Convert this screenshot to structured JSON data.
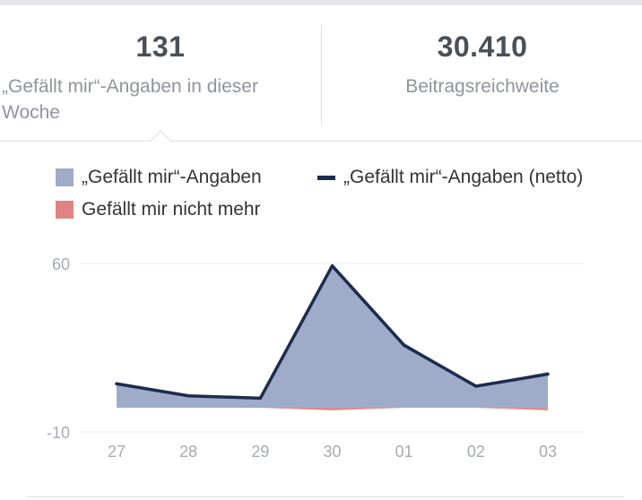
{
  "stats": {
    "likes_value": "131",
    "likes_label": "„Gefällt mir“-Angaben in dieser Woche",
    "reach_value": "30.410",
    "reach_label": "Beitragsreichweite"
  },
  "colors": {
    "likes_area": "#9eabc9",
    "net_line": "#1d2c4c",
    "unlikes_area": "#e08483",
    "grid": "#e9ebee",
    "tick_text": "#a7abb1"
  },
  "chart_data": {
    "type": "area",
    "title": "",
    "xlabel": "",
    "ylabel": "",
    "legend_position": "top",
    "grid": true,
    "ylim": [
      -10,
      60
    ],
    "yticks": [
      60,
      -10
    ],
    "categories": [
      "27",
      "28",
      "29",
      "30",
      "01",
      "02",
      "03"
    ],
    "series": [
      {
        "name": "„Gefällt mir“-Angaben",
        "type": "area",
        "color": "#9eabc9",
        "values": [
          10,
          5,
          4,
          60,
          27,
          9,
          15
        ]
      },
      {
        "name": "„Gefällt mir“-Angaben (netto)",
        "type": "line",
        "color": "#1d2c4c",
        "values": [
          10,
          5,
          4,
          59,
          26,
          9,
          14
        ]
      },
      {
        "name": "Gefällt mir nicht mehr",
        "type": "area",
        "color": "#e08483",
        "values": [
          0,
          0,
          0,
          -1,
          0,
          0,
          -1
        ]
      }
    ]
  }
}
